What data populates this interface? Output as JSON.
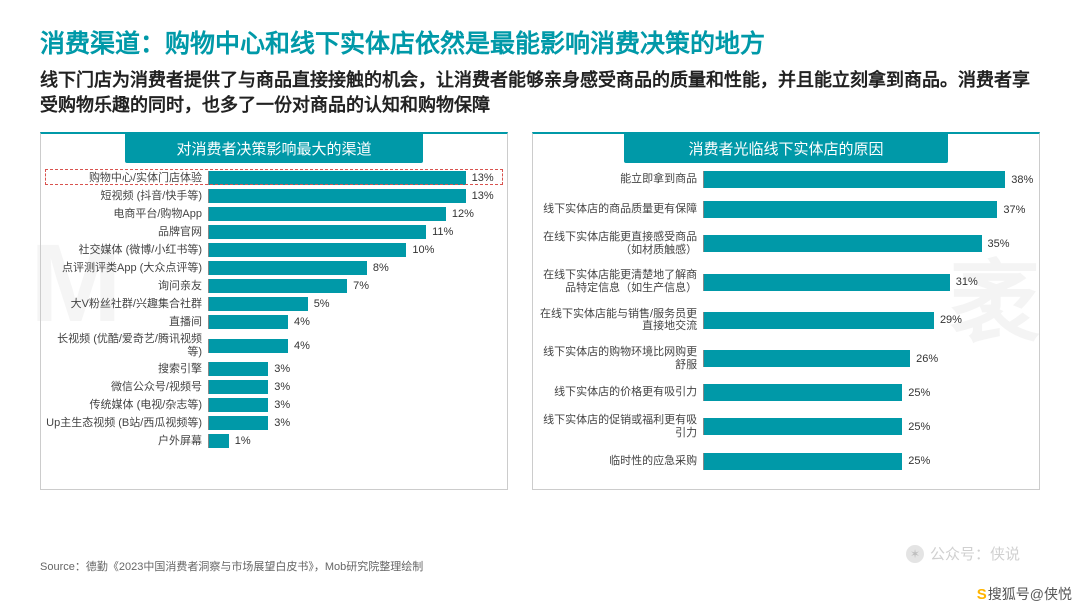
{
  "title": "消费渠道：购物中心和线下实体店依然是最能影响消费决策的地方",
  "subtitle": "线下门店为消费者提供了与商品直接接触的机会，让消费者能够亲身感受商品的质量和性能，并且能立刻拿到商品。消费者享受购物乐趣的同时，也多了一份对商品的认知和购物保障",
  "colors": {
    "accent": "#0099a8",
    "bar": "#0099a8",
    "highlight_border": "#d9534f",
    "text": "#222222",
    "label": "#444444",
    "background": "#ffffff"
  },
  "typography": {
    "title_fontsize_pt": 19,
    "subtitle_fontsize_pt": 13.5,
    "label_fontsize_pt": 8.5,
    "value_fontsize_pt": 8.5,
    "header_fontsize_pt": 11
  },
  "left_chart": {
    "type": "bar",
    "orientation": "horizontal",
    "title": "对消费者决策影响最大的渠道",
    "max_pct": 15,
    "bar_color": "#0099a8",
    "highlight_index": 0,
    "items": [
      {
        "label": "购物中心/实体门店体验",
        "value": 13,
        "display": "13%"
      },
      {
        "label": "短视频 (抖音/快手等)",
        "value": 13,
        "display": "13%"
      },
      {
        "label": "电商平台/购物App",
        "value": 12,
        "display": "12%"
      },
      {
        "label": "品牌官网",
        "value": 11,
        "display": "11%"
      },
      {
        "label": "社交媒体 (微博/小红书等)",
        "value": 10,
        "display": "10%"
      },
      {
        "label": "点评测评类App (大众点评等)",
        "value": 8,
        "display": "8%"
      },
      {
        "label": "询问亲友",
        "value": 7,
        "display": "7%"
      },
      {
        "label": "大V粉丝社群/兴趣集合社群",
        "value": 5,
        "display": "5%"
      },
      {
        "label": "直播间",
        "value": 4,
        "display": "4%"
      },
      {
        "label": "长视频 (优酷/爱奇艺/腾讯视频等)",
        "value": 4,
        "display": "4%"
      },
      {
        "label": "搜索引擎",
        "value": 3,
        "display": "3%"
      },
      {
        "label": "微信公众号/视频号",
        "value": 3,
        "display": "3%"
      },
      {
        "label": "传统媒体 (电视/杂志等)",
        "value": 3,
        "display": "3%"
      },
      {
        "label": "Up主生态视频 (B站/西瓜视频等)",
        "value": 3,
        "display": "3%"
      },
      {
        "label": "户外屏幕",
        "value": 1,
        "display": "1%"
      }
    ]
  },
  "right_chart": {
    "type": "bar",
    "orientation": "horizontal",
    "title": "消费者光临线下实体店的原因",
    "max_pct": 42,
    "bar_color": "#0099a8",
    "items": [
      {
        "label": "能立即拿到商品",
        "value": 38,
        "display": "38%"
      },
      {
        "label": "线下实体店的商品质量更有保障",
        "value": 37,
        "display": "37%"
      },
      {
        "label": "在线下实体店能更直接感受商品（如材质触感）",
        "value": 35,
        "display": "35%"
      },
      {
        "label": "在线下实体店能更清楚地了解商品特定信息（如生产信息）",
        "value": 31,
        "display": "31%"
      },
      {
        "label": "在线下实体店能与销售/服务员更直接地交流",
        "value": 29,
        "display": "29%"
      },
      {
        "label": "线下实体店的购物环境比网购更舒服",
        "value": 26,
        "display": "26%"
      },
      {
        "label": "线下实体店的价格更有吸引力",
        "value": 25,
        "display": "25%"
      },
      {
        "label": "线下实体店的促销或福利更有吸引力",
        "value": 25,
        "display": "25%"
      },
      {
        "label": "临时性的应急采购",
        "value": 25,
        "display": "25%"
      }
    ]
  },
  "source": "Source：德勤《2023中国消费者洞察与市场展望白皮书》，Mob研究院整理绘制",
  "watermarks": {
    "left_bg": "M",
    "right_bg": "袤",
    "account_label": "公众号：侠说",
    "sohu": "搜狐号@侠悦"
  }
}
